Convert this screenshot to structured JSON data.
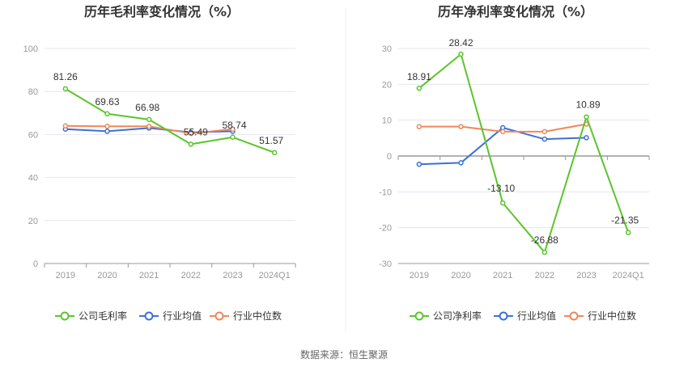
{
  "source": "数据来源：恒生聚源",
  "colors": {
    "company": "#5cc42c",
    "industry_avg": "#3e6fd6",
    "industry_median": "#f0875a",
    "grid": "#e6e6f0",
    "axis": "#999999"
  },
  "chart_data": [
    {
      "type": "line",
      "title": "历年毛利率变化情况（%）",
      "categories": [
        "2019",
        "2020",
        "2021",
        "2022",
        "2023",
        "2024Q1"
      ],
      "ylim": [
        0,
        100
      ],
      "yticks": [
        0,
        20,
        40,
        60,
        80,
        100
      ],
      "grid": true,
      "legend_position": "bottom",
      "series": [
        {
          "name": "公司毛利率",
          "values": [
            81.26,
            69.63,
            66.98,
            55.49,
            58.74,
            51.57
          ],
          "labels": [
            "81.26",
            "69.63",
            "66.98",
            "55.49",
            "58.74",
            "51.57"
          ]
        },
        {
          "name": "行业均值",
          "values": [
            62.5,
            61.5,
            63.0,
            61.0,
            61.5,
            null
          ]
        },
        {
          "name": "行业中位数",
          "values": [
            64.0,
            63.8,
            63.8,
            60.5,
            62.5,
            null
          ]
        }
      ]
    },
    {
      "type": "line",
      "title": "历年净利率变化情况（%）",
      "categories": [
        "2019",
        "2020",
        "2021",
        "2022",
        "2023",
        "2024Q1"
      ],
      "ylim": [
        -30,
        30
      ],
      "yticks": [
        -30,
        -20,
        -10,
        0,
        10,
        20,
        30
      ],
      "grid": true,
      "legend_position": "bottom",
      "series": [
        {
          "name": "公司净利率",
          "values": [
            18.91,
            28.42,
            -13.1,
            -26.88,
            10.89,
            -21.35
          ],
          "labels": [
            "18.91",
            "28.42",
            "-13.10",
            "-26.88",
            "10.89",
            "-21.35"
          ]
        },
        {
          "name": "行业均值",
          "values": [
            -2.3,
            -1.9,
            7.9,
            4.7,
            5.1,
            null
          ]
        },
        {
          "name": "行业中位数",
          "values": [
            8.2,
            8.2,
            6.8,
            6.8,
            8.9,
            null
          ]
        }
      ]
    }
  ]
}
